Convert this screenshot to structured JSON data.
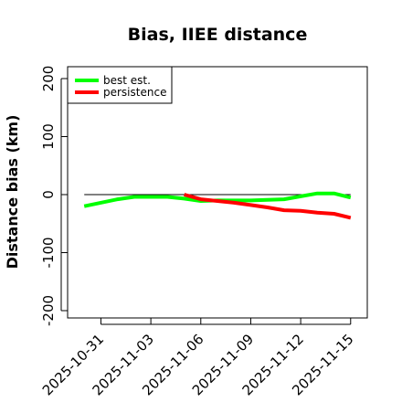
{
  "chart_data": {
    "type": "line",
    "title": "Bias, IIEE distance",
    "xlabel": "",
    "ylabel": "Distance bias (km)",
    "xlim": [
      "2025-10-29",
      "2025-11-16"
    ],
    "ylim": [
      -200,
      200
    ],
    "yticks": [
      -200,
      -100,
      0,
      100,
      200
    ],
    "xtick_labels": [
      "2025-10-31",
      "2025-11-03",
      "2025-11-06",
      "2025-11-09",
      "2025-11-12",
      "2025-11-15"
    ],
    "reference_line": 0,
    "grid": false,
    "legend_position": "top-left",
    "series": [
      {
        "name": "best est.",
        "color": "#00ff00",
        "x": [
          "2025-10-30",
          "2025-11-01",
          "2025-11-02",
          "2025-11-04",
          "2025-11-05",
          "2025-11-06",
          "2025-11-07",
          "2025-11-08",
          "2025-11-09",
          "2025-11-10",
          "2025-11-11",
          "2025-11-12",
          "2025-11-13",
          "2025-11-14",
          "2025-11-15"
        ],
        "y": [
          -20,
          -8,
          -4,
          -4,
          -7,
          -11,
          -10,
          -10,
          -10,
          -9,
          -8,
          -3,
          2,
          2,
          -5
        ]
      },
      {
        "name": "persistence",
        "color": "#ff0000",
        "x": [
          "2025-11-05",
          "2025-11-06",
          "2025-11-07",
          "2025-11-08",
          "2025-11-09",
          "2025-11-10",
          "2025-11-11",
          "2025-11-12",
          "2025-11-13",
          "2025-11-14",
          "2025-11-15"
        ],
        "y": [
          0,
          -8,
          -11,
          -14,
          -18,
          -22,
          -27,
          -28,
          -31,
          -33,
          -40
        ]
      }
    ]
  }
}
